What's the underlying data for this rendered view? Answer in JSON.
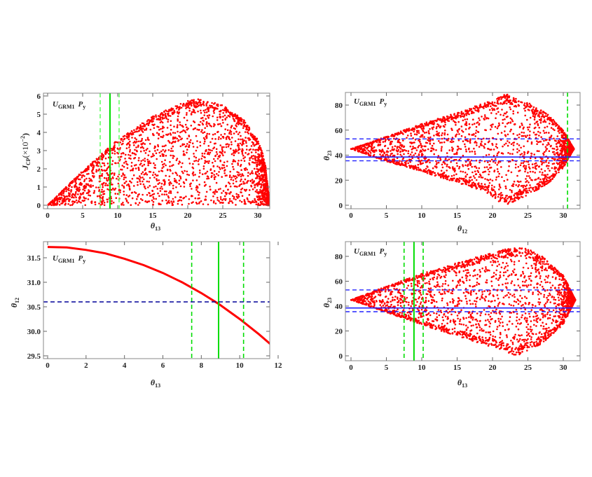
{
  "chart_data": [
    {
      "type": "scatter",
      "title": {
        "main": "U",
        "sub": "GRM1",
        "main2": "P",
        "sub2": "y"
      },
      "xlabel": {
        "main": "θ",
        "sub": "13"
      },
      "ylabel": {
        "main": "J",
        "sub": "CP",
        "rest": "(×10",
        "sup": "−2",
        "end": ")"
      },
      "xlim": [
        0,
        32
      ],
      "ylim": [
        0,
        6
      ],
      "xticks": [
        "0",
        "5",
        "10",
        "15",
        "20",
        "25",
        "30"
      ],
      "yticks": [
        "0",
        "1",
        "2",
        "3",
        "4",
        "5",
        "6"
      ],
      "point_color": "#ff0000",
      "envelope_upper": [
        [
          0,
          0
        ],
        [
          5,
          1.9
        ],
        [
          10,
          3.6
        ],
        [
          15,
          4.9
        ],
        [
          20,
          5.75
        ],
        [
          22,
          5.85
        ],
        [
          25,
          5.5
        ],
        [
          28,
          4.7
        ],
        [
          30,
          3.6
        ],
        [
          31,
          2.5
        ],
        [
          31.7,
          0
        ]
      ],
      "envelope_lower": [
        [
          0,
          0
        ],
        [
          31.7,
          0
        ]
      ],
      "vlines": [
        {
          "x": 7.5,
          "style": "dashed",
          "color": "#66ff66"
        },
        {
          "x": 8.9,
          "style": "solid",
          "color": "#00dd00"
        },
        {
          "x": 10.2,
          "style": "dashed",
          "color": "#66ff66"
        }
      ],
      "hlines": []
    },
    {
      "type": "scatter",
      "title": {
        "main": "U",
        "sub": "GRM1",
        "main2": "P",
        "sub2": "y"
      },
      "xlabel": {
        "main": "θ",
        "sub": "12"
      },
      "ylabel": {
        "main": "θ",
        "sub": "23"
      },
      "xlim": [
        0,
        32
      ],
      "ylim": [
        0,
        90
      ],
      "xticks": [
        "0",
        "5",
        "10",
        "15",
        "20",
        "25",
        "30"
      ],
      "yticks": [
        "0",
        "20",
        "40",
        "60",
        "80"
      ],
      "point_color": "#ff0000",
      "envelope_upper": [
        [
          0,
          45
        ],
        [
          5,
          55
        ],
        [
          10,
          65
        ],
        [
          15,
          74
        ],
        [
          20,
          84
        ],
        [
          22,
          89
        ],
        [
          25,
          82
        ],
        [
          28,
          72
        ],
        [
          30,
          60
        ],
        [
          31.5,
          45
        ]
      ],
      "envelope_lower": [
        [
          0,
          45
        ],
        [
          5,
          35
        ],
        [
          10,
          27
        ],
        [
          15,
          18
        ],
        [
          19,
          11
        ],
        [
          21,
          2
        ],
        [
          22,
          0.5
        ],
        [
          25,
          8
        ],
        [
          28,
          18
        ],
        [
          30,
          30
        ],
        [
          31.5,
          45
        ]
      ],
      "vlines": [
        {
          "x": 30.6,
          "style": "dashed",
          "color": "#00dd00"
        }
      ],
      "hlines": [
        {
          "y": 53,
          "style": "dashed",
          "color": "#2222ff"
        },
        {
          "y": 38.5,
          "style": "solid",
          "color": "#2222ff"
        },
        {
          "y": 35.5,
          "style": "dashed",
          "color": "#2222ff"
        }
      ]
    },
    {
      "type": "line",
      "title": {
        "main": "U",
        "sub": "GRM1",
        "main2": "P",
        "sub2": "y"
      },
      "xlabel": {
        "main": "θ",
        "sub": "13"
      },
      "ylabel": {
        "main": "θ",
        "sub": "12"
      },
      "xlim": [
        0,
        12
      ],
      "ylim": [
        29.5,
        31.75
      ],
      "xticks": [
        "0",
        "2",
        "4",
        "6",
        "8",
        "10",
        "12"
      ],
      "yticks": [
        "29.5",
        "30.0",
        "30.5",
        "31.0",
        "31.5"
      ],
      "line_color": "#ff0000",
      "x": [
        0,
        1,
        2,
        3,
        4,
        5,
        6,
        7,
        8,
        8.9,
        10,
        11,
        11.8
      ],
      "y": [
        31.72,
        31.71,
        31.66,
        31.59,
        31.48,
        31.35,
        31.19,
        31.0,
        30.78,
        30.56,
        30.25,
        29.94,
        29.67
      ],
      "vlines": [
        {
          "x": 7.5,
          "style": "dashed",
          "color": "#00dd00"
        },
        {
          "x": 8.9,
          "style": "solid",
          "color": "#00dd00"
        },
        {
          "x": 10.2,
          "style": "dashed",
          "color": "#00dd00"
        }
      ],
      "hlines": [
        {
          "y": 30.6,
          "style": "dashed",
          "color": "#000099"
        }
      ]
    },
    {
      "type": "scatter",
      "title": {
        "main": "U",
        "sub": "GRM1",
        "main2": "P",
        "sub2": "y"
      },
      "xlabel": {
        "main": "θ",
        "sub": "13"
      },
      "ylabel": {
        "main": "θ",
        "sub": "23"
      },
      "xlim": [
        0,
        32
      ],
      "ylim": [
        0,
        90
      ],
      "xticks": [
        "0",
        "5",
        "10",
        "15",
        "20",
        "25",
        "30"
      ],
      "yticks": [
        "0",
        "20",
        "40",
        "60",
        "80"
      ],
      "point_color": "#ff0000",
      "envelope_upper": [
        [
          0,
          45
        ],
        [
          5,
          56
        ],
        [
          10,
          66
        ],
        [
          15,
          75
        ],
        [
          20,
          83
        ],
        [
          24,
          89
        ],
        [
          27,
          80
        ],
        [
          30,
          65
        ],
        [
          31.7,
          45
        ]
      ],
      "envelope_lower": [
        [
          0,
          45
        ],
        [
          5,
          35
        ],
        [
          10,
          25
        ],
        [
          15,
          16
        ],
        [
          20,
          7
        ],
        [
          23.5,
          0
        ],
        [
          27,
          10
        ],
        [
          30,
          25
        ],
        [
          31.7,
          45
        ]
      ],
      "vlines": [
        {
          "x": 7.5,
          "style": "dashed",
          "color": "#00dd00"
        },
        {
          "x": 8.9,
          "style": "solid",
          "color": "#00dd00"
        },
        {
          "x": 10.2,
          "style": "dashed",
          "color": "#00dd00"
        }
      ],
      "hlines": [
        {
          "y": 53,
          "style": "dashed",
          "color": "#2222ff"
        },
        {
          "y": 38.5,
          "style": "solid",
          "color": "#2222ff"
        },
        {
          "y": 35.5,
          "style": "dashed",
          "color": "#2222ff"
        }
      ]
    }
  ]
}
